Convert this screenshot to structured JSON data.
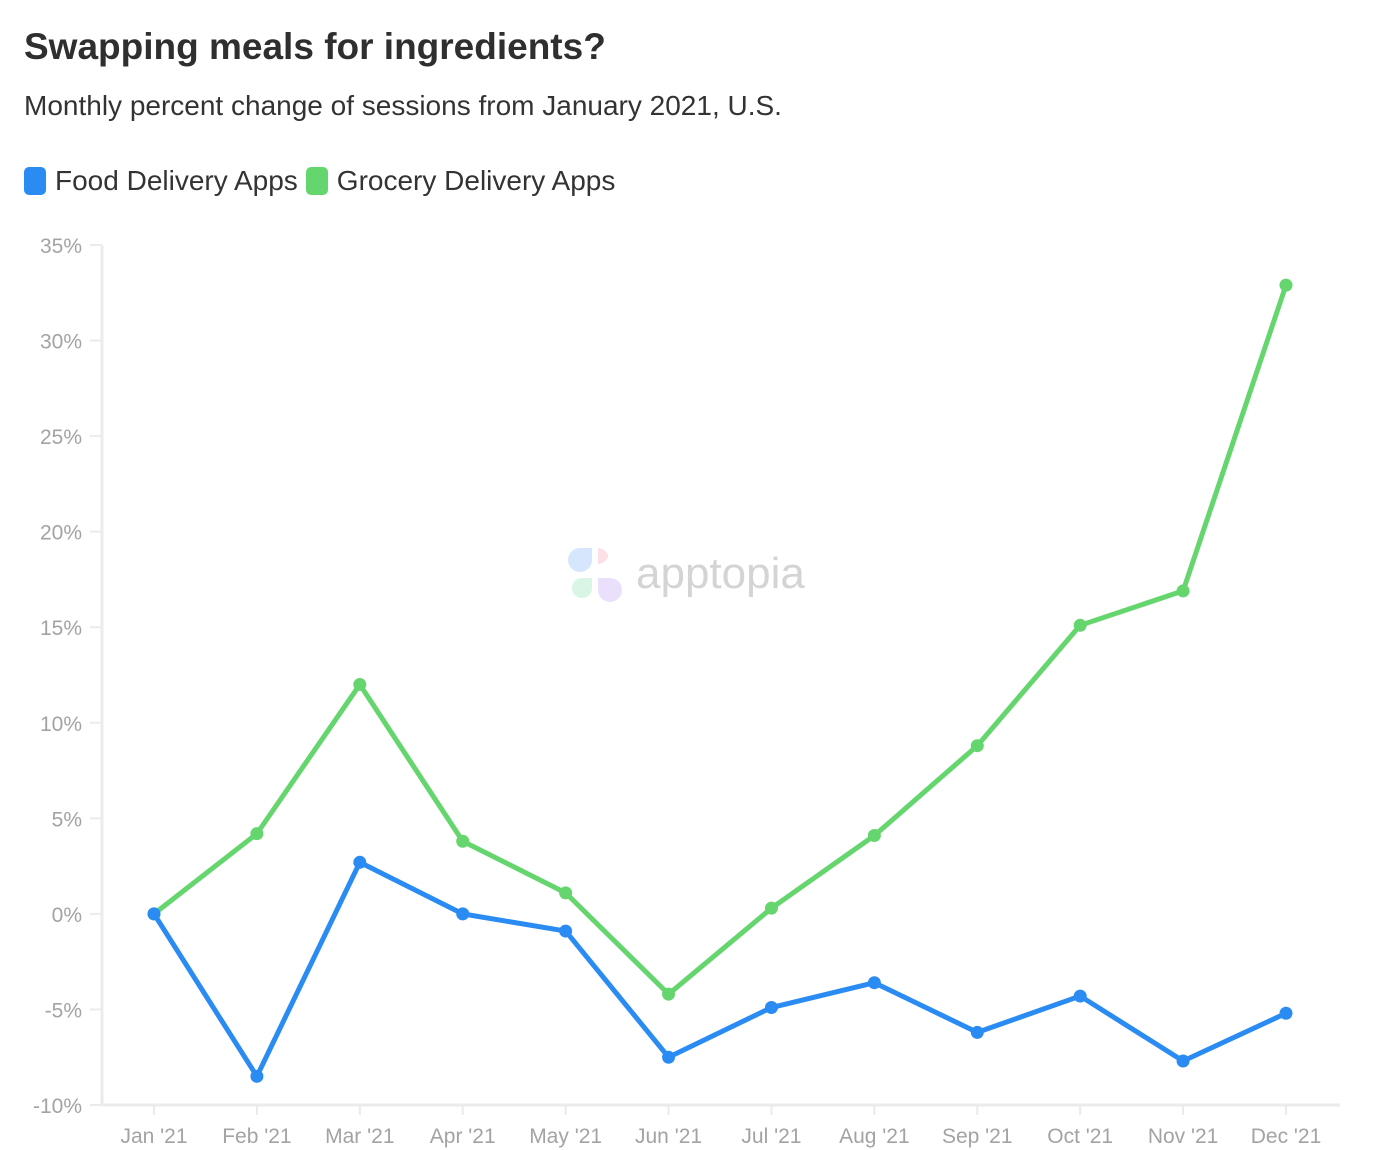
{
  "chart_data": {
    "type": "line",
    "title": "Swapping meals for ingredients?",
    "subtitle": "Monthly percent change of sessions from January 2021, U.S.",
    "categories": [
      "Jan '21",
      "Feb '21",
      "Mar '21",
      "Apr '21",
      "May '21",
      "Jun '21",
      "Jul '21",
      "Aug '21",
      "Sep '21",
      "Oct '21",
      "Nov '21",
      "Dec '21"
    ],
    "series": [
      {
        "name": "Food Delivery Apps",
        "color": "#2a8cf2",
        "values": [
          0,
          -8.5,
          2.7,
          0,
          -0.9,
          -7.5,
          -4.9,
          -3.6,
          -6.2,
          -4.3,
          -7.7,
          -5.2
        ]
      },
      {
        "name": "Grocery Delivery Apps",
        "color": "#65d56e",
        "values": [
          0,
          4.2,
          12.0,
          3.8,
          1.1,
          -4.2,
          0.3,
          4.1,
          8.8,
          15.1,
          16.9,
          32.9
        ]
      }
    ],
    "yticks": [
      "-10%",
      "-5%",
      "0%",
      "5%",
      "10%",
      "15%",
      "20%",
      "25%",
      "30%",
      "35%"
    ],
    "ytick_values": [
      -10,
      -5,
      0,
      5,
      10,
      15,
      20,
      25,
      30,
      35
    ],
    "ylim": [
      -10,
      35
    ],
    "ylabel": "",
    "xlabel": "",
    "grid": false,
    "legend_placement": "top-left",
    "watermark": "apptopia"
  }
}
